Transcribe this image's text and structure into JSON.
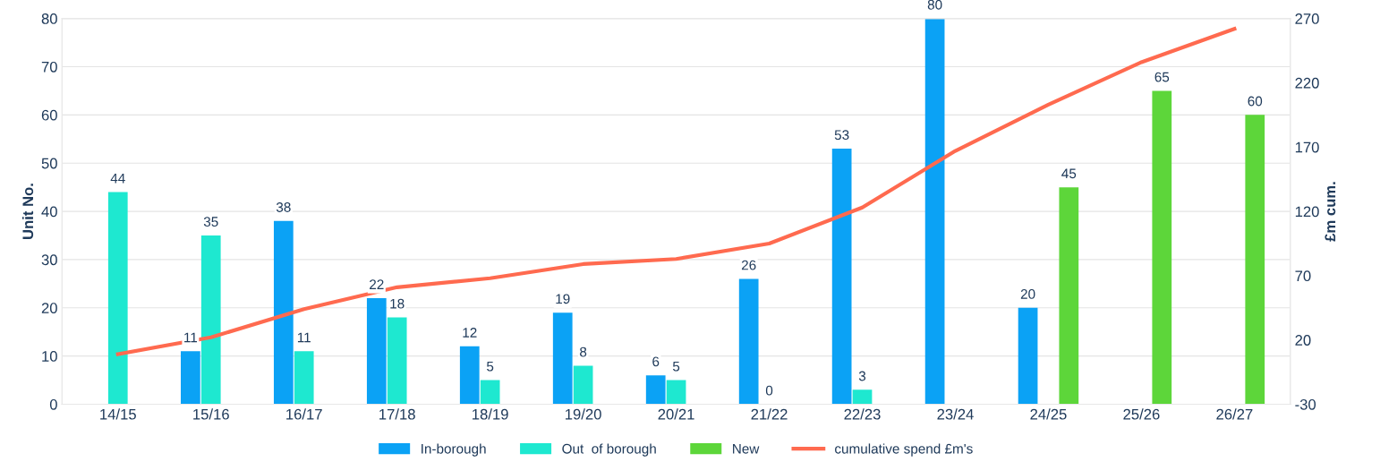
{
  "chart_data": {
    "type": "bar",
    "ylabel": "Unit No.",
    "y2label": "£m cum.",
    "categories": [
      "14/15",
      "15/16",
      "16/17",
      "17/18",
      "18/19",
      "19/20",
      "20/21",
      "21/22",
      "22/23",
      "23/24",
      "24/25",
      "25/26",
      "26/27"
    ],
    "series": [
      {
        "name": "In-borough",
        "color": "#0ba2f5",
        "values": [
          null,
          11,
          38,
          22,
          12,
          19,
          6,
          26,
          53,
          80,
          20,
          null,
          null
        ],
        "value_labels": [
          null,
          "11",
          "38",
          "22",
          "12",
          "19",
          "6",
          "26",
          "53",
          "80",
          "20",
          null,
          null
        ]
      },
      {
        "name": "Out  of borough",
        "color": "#1ee8d0",
        "values": [
          44,
          35,
          11,
          18,
          5,
          8,
          5,
          0,
          3,
          null,
          null,
          null,
          null
        ],
        "value_labels": [
          "44",
          "35",
          "11",
          "18",
          "5",
          "8",
          "5",
          "0",
          "3",
          null,
          null,
          null,
          null
        ]
      },
      {
        "name": "New",
        "color": "#5dd63a",
        "values": [
          null,
          null,
          null,
          null,
          null,
          null,
          null,
          null,
          null,
          null,
          45,
          65,
          60
        ],
        "value_labels": [
          null,
          null,
          null,
          null,
          null,
          null,
          null,
          null,
          null,
          null,
          "45",
          "65",
          "60"
        ]
      },
      {
        "name": "cumulative spend £m's",
        "color": "#ff6a4f",
        "type": "line",
        "axis": "y2",
        "values": [
          9,
          22,
          44,
          61,
          68,
          79,
          83,
          95,
          123,
          167,
          203,
          236,
          262
        ]
      }
    ],
    "ylim": [
      0,
      80
    ],
    "yticks": [
      0,
      10,
      20,
      30,
      40,
      50,
      60,
      70,
      80
    ],
    "y2lim": [
      -30,
      270
    ],
    "y2ticks": [
      -30,
      20,
      70,
      120,
      170,
      220,
      270
    ],
    "grid": "y",
    "legend": "bottom",
    "marker": "none",
    "line_style": "solid"
  }
}
